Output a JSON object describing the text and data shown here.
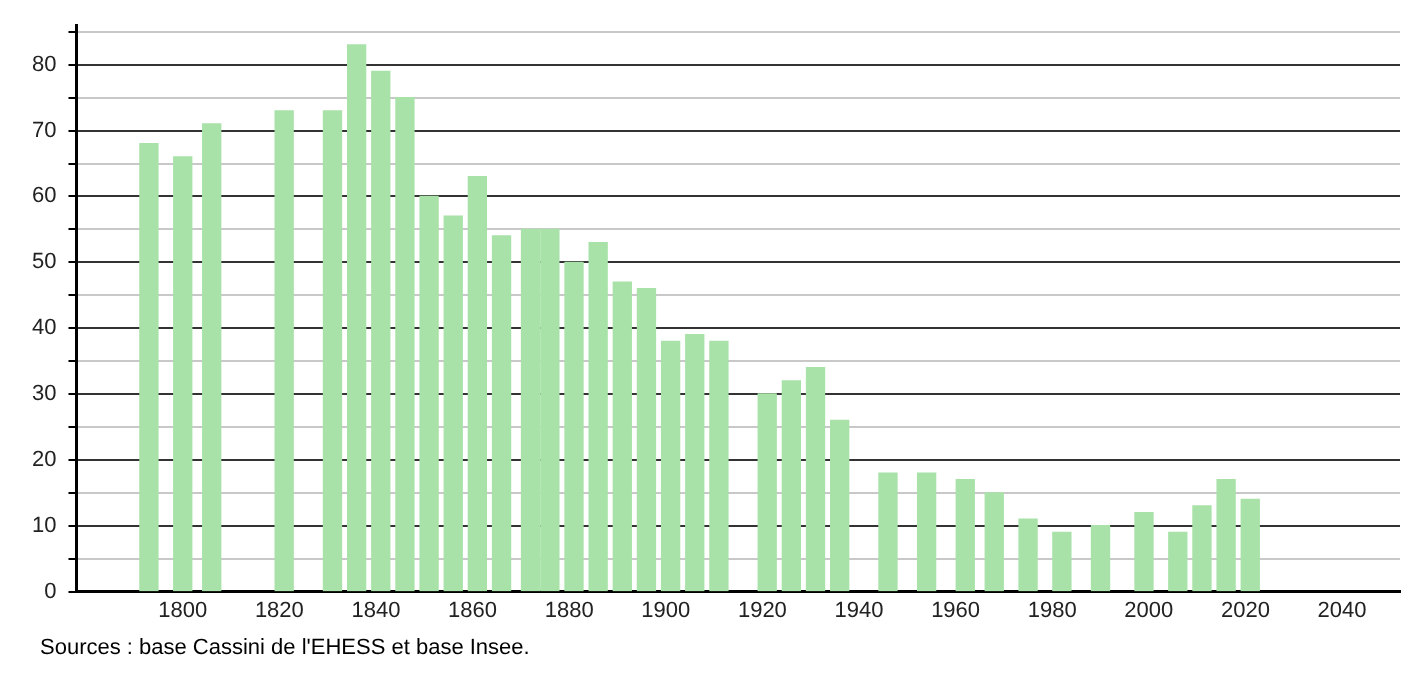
{
  "chart_data": {
    "type": "bar",
    "x": [
      1793,
      1800,
      1806,
      1821,
      1831,
      1836,
      1841,
      1846,
      1851,
      1856,
      1861,
      1866,
      1872,
      1876,
      1881,
      1886,
      1891,
      1896,
      1901,
      1906,
      1911,
      1921,
      1926,
      1931,
      1936,
      1946,
      1954,
      1962,
      1968,
      1975,
      1982,
      1990,
      1999,
      2006,
      2011,
      2016,
      2021
    ],
    "values": [
      68,
      66,
      71,
      73,
      73,
      83,
      79,
      75,
      60,
      57,
      63,
      54,
      55,
      55,
      50,
      53,
      47,
      46,
      38,
      39,
      38,
      30,
      32,
      34,
      26,
      18,
      18,
      17,
      15,
      11,
      9,
      10,
      12,
      9,
      13,
      17,
      14
    ],
    "color": "#a8e2a8",
    "xlim": [
      1778,
      2052
    ],
    "xticks": [
      1800,
      1820,
      1840,
      1860,
      1880,
      1900,
      1920,
      1940,
      1960,
      1980,
      2000,
      2020,
      2040
    ],
    "ylim": [
      0,
      86
    ],
    "yticks": [
      0,
      {
        "value": 5,
        "label": null
      },
      10,
      {
        "value": 15,
        "label": null
      },
      20,
      {
        "value": 25,
        "label": null
      },
      30,
      {
        "value": 35,
        "label": null
      },
      40,
      {
        "value": 45,
        "label": null
      },
      50,
      {
        "value": 55,
        "label": null
      },
      60,
      {
        "value": 65,
        "label": null
      },
      70,
      {
        "value": 75,
        "label": null
      },
      80,
      {
        "value": 85,
        "label": null
      }
    ],
    "grid": "y",
    "legend": false,
    "annotations": [
      "Sources : base Cassini de l'EHESS et base Insee."
    ]
  }
}
